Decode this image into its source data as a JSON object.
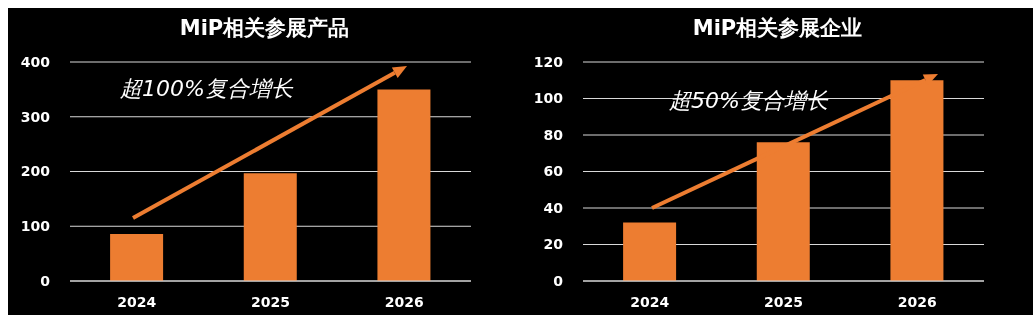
{
  "chart_data": [
    {
      "type": "bar",
      "title": "MiP相关参展产品",
      "categories": [
        "2024",
        "2025",
        "2026"
      ],
      "values": [
        86,
        197,
        350
      ],
      "color": "#ed7d31",
      "ylim": [
        0,
        400
      ],
      "yticks": [
        0,
        100,
        200,
        300,
        400
      ],
      "grid": "y",
      "annotations": [
        "超100%复合增长"
      ]
    },
    {
      "type": "bar",
      "title": "MiP相关参展企业",
      "categories": [
        "2024",
        "2025",
        "2026"
      ],
      "values": [
        32,
        76,
        110
      ],
      "color": "#ed7d31",
      "ylim": [
        0,
        120
      ],
      "yticks": [
        0,
        20,
        40,
        60,
        80,
        100,
        120
      ],
      "grid": "y",
      "annotations": [
        "超50%复合增长"
      ]
    }
  ]
}
